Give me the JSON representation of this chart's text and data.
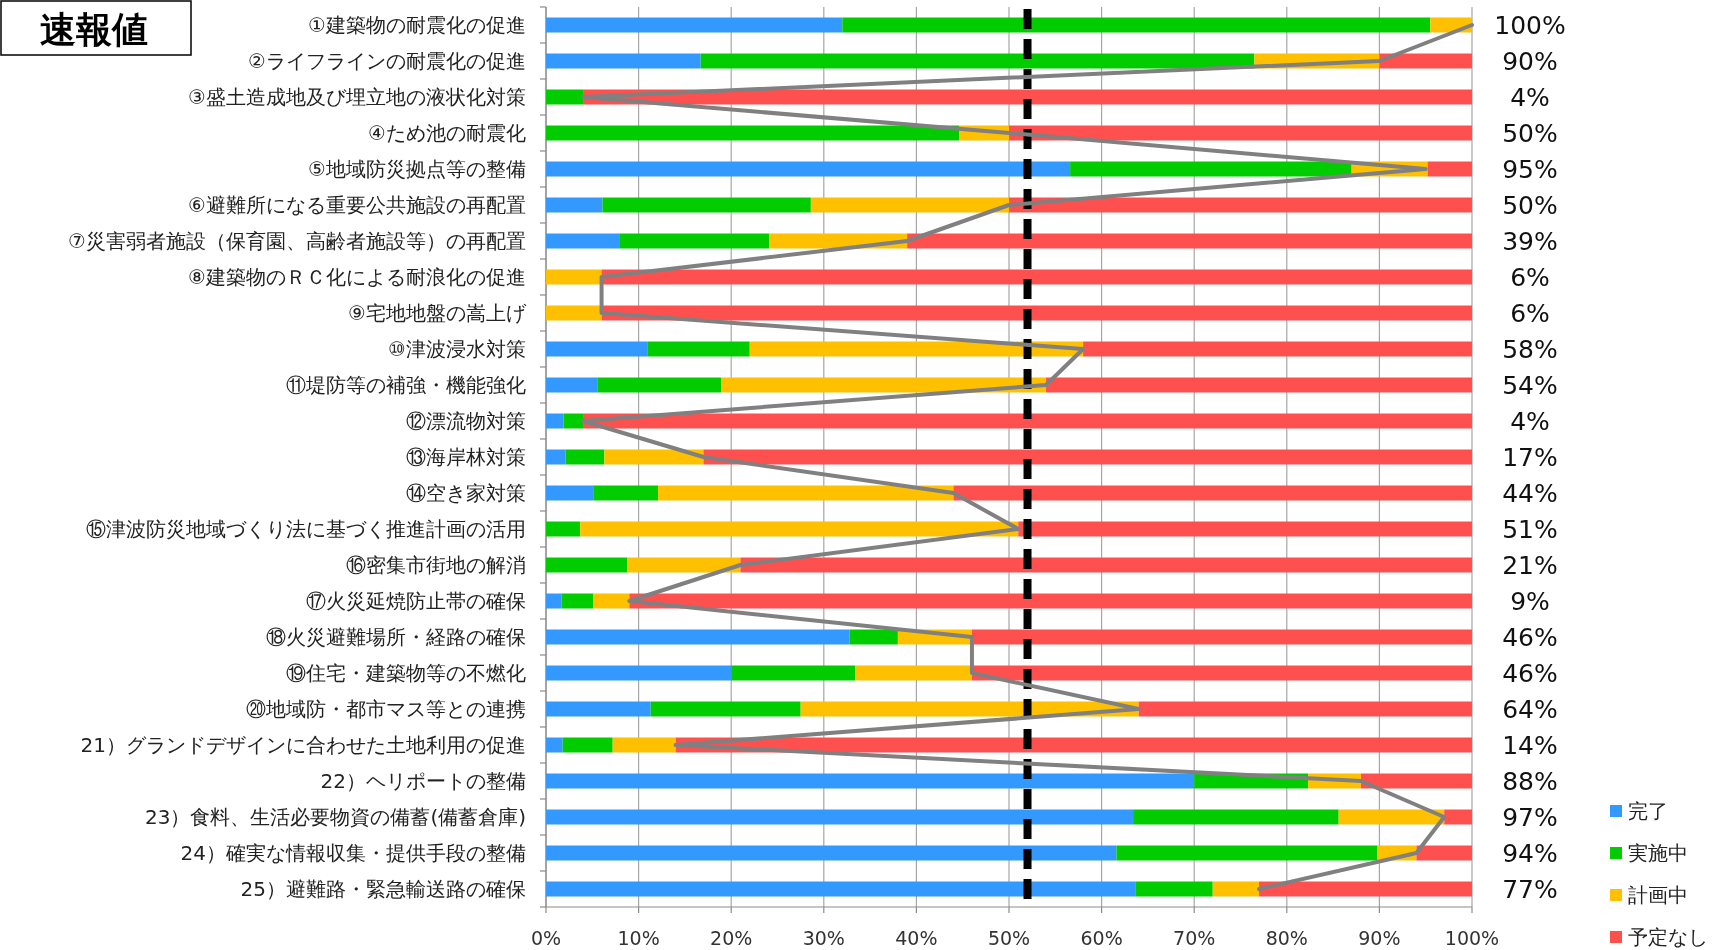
{
  "chart_data": {
    "type": "bar",
    "orientation": "horizontal",
    "stacked": true,
    "title": "速報値",
    "categories": [
      "①建築物の耐震化の促進",
      "②ライフラインの耐震化の促進",
      "③盛土造成地及び埋立地の液状化対策",
      "④ため池の耐震化",
      "⑤地域防災拠点等の整備",
      "⑥避難所になる重要公共施設の再配置",
      "⑦災害弱者施設（保育園、高齢者施設等）の再配置",
      "⑧建築物のＲＣ化による耐浪化の促進",
      "⑨宅地地盤の嵩上げ",
      "⑩津波浸水対策",
      "⑪堤防等の補強・機能強化",
      "⑫漂流物対策",
      "⑬海岸林対策",
      "⑭空き家対策",
      "⑮津波防災地域づくり法に基づく推進計画の活用",
      "⑯密集市街地の解消",
      "⑰火災延焼防止帯の確保",
      "⑱火災避難場所・経路の確保",
      "⑲住宅・建築物等の不燃化",
      "⑳地域防・都市マス等との連携",
      "21）グランドデザインに合わせた土地利用の促進",
      "22）ヘリポートの整備",
      "23）食料、生活必要物資の備蓄(備蓄倉庫)",
      "24）確実な情報収集・提供手段の整備",
      "25）避難路・緊急輸送路の確保"
    ],
    "series": [
      {
        "name": "完了",
        "color": "#3399ff",
        "values": [
          32,
          16.7,
          0,
          0,
          56.6,
          6.1,
          7.9,
          0,
          0,
          11,
          5.6,
          1.9,
          2.1,
          5.1,
          0,
          0,
          1.7,
          32.8,
          20,
          11.3,
          1.8,
          70,
          63.4,
          61.6,
          63.7
        ]
      },
      {
        "name": "実施中",
        "color": "#00cc00",
        "values": [
          63.5,
          59.8,
          4,
          44.6,
          30.4,
          22.5,
          16.2,
          0,
          0,
          11,
          13.3,
          2.1,
          4.2,
          7,
          3.7,
          8.8,
          3.4,
          5.2,
          13.4,
          16.2,
          5.4,
          12.3,
          22.2,
          28.2,
          8.3
        ]
      },
      {
        "name": "計画中",
        "color": "#ffc000",
        "values": [
          4.5,
          13.5,
          0,
          5.4,
          8.2,
          21.4,
          14.9,
          6,
          6,
          36,
          35.1,
          0,
          10.7,
          31.9,
          47.3,
          12.2,
          3.9,
          8,
          12.6,
          36.5,
          6.8,
          5.7,
          11.4,
          4.2,
          5
        ]
      },
      {
        "name": "予定なし",
        "color": "#ff5050",
        "values": [
          0,
          10,
          96,
          50,
          4.8,
          50,
          61,
          94,
          94,
          42,
          46,
          96,
          83,
          56,
          49,
          79,
          91,
          54,
          54,
          36,
          86,
          12,
          3,
          6,
          23
        ]
      },
      {
        "type": "line",
        "color": "#808080",
        "values": [
          100,
          90,
          4,
          50,
          95,
          50,
          39,
          6,
          6,
          58,
          54,
          4,
          17,
          44,
          51,
          21,
          9,
          46,
          46,
          64,
          14,
          88,
          97,
          94,
          77
        ],
        "value_labels": [
          "100%",
          "90%",
          "4%",
          "50%",
          "95%",
          "50%",
          "39%",
          "6%",
          "6%",
          "58%",
          "54%",
          "4%",
          "17%",
          "44%",
          "51%",
          "21%",
          "9%",
          "46%",
          "46%",
          "64%",
          "14%",
          "88%",
          "97%",
          "94%",
          "77%"
        ]
      }
    ],
    "xlim": [
      0,
      100
    ],
    "xticks": [
      {
        "value": 0,
        "label": "0%"
      },
      {
        "value": 10,
        "label": "10%"
      },
      {
        "value": 20,
        "label": "20%"
      },
      {
        "value": 30,
        "label": "30%"
      },
      {
        "value": 40,
        "label": "40%"
      },
      {
        "value": 50,
        "label": "50%"
      },
      {
        "value": 60,
        "label": "60%"
      },
      {
        "value": 70,
        "label": "70%"
      },
      {
        "value": 80,
        "label": "80%"
      },
      {
        "value": 90,
        "label": "90%"
      },
      {
        "value": 100,
        "label": "100%"
      }
    ],
    "grid": "x",
    "legend": "bottom right",
    "ref_lines": [
      {
        "axis": "x",
        "value": 52,
        "color": "#000000",
        "line_style": "dashed"
      }
    ]
  }
}
